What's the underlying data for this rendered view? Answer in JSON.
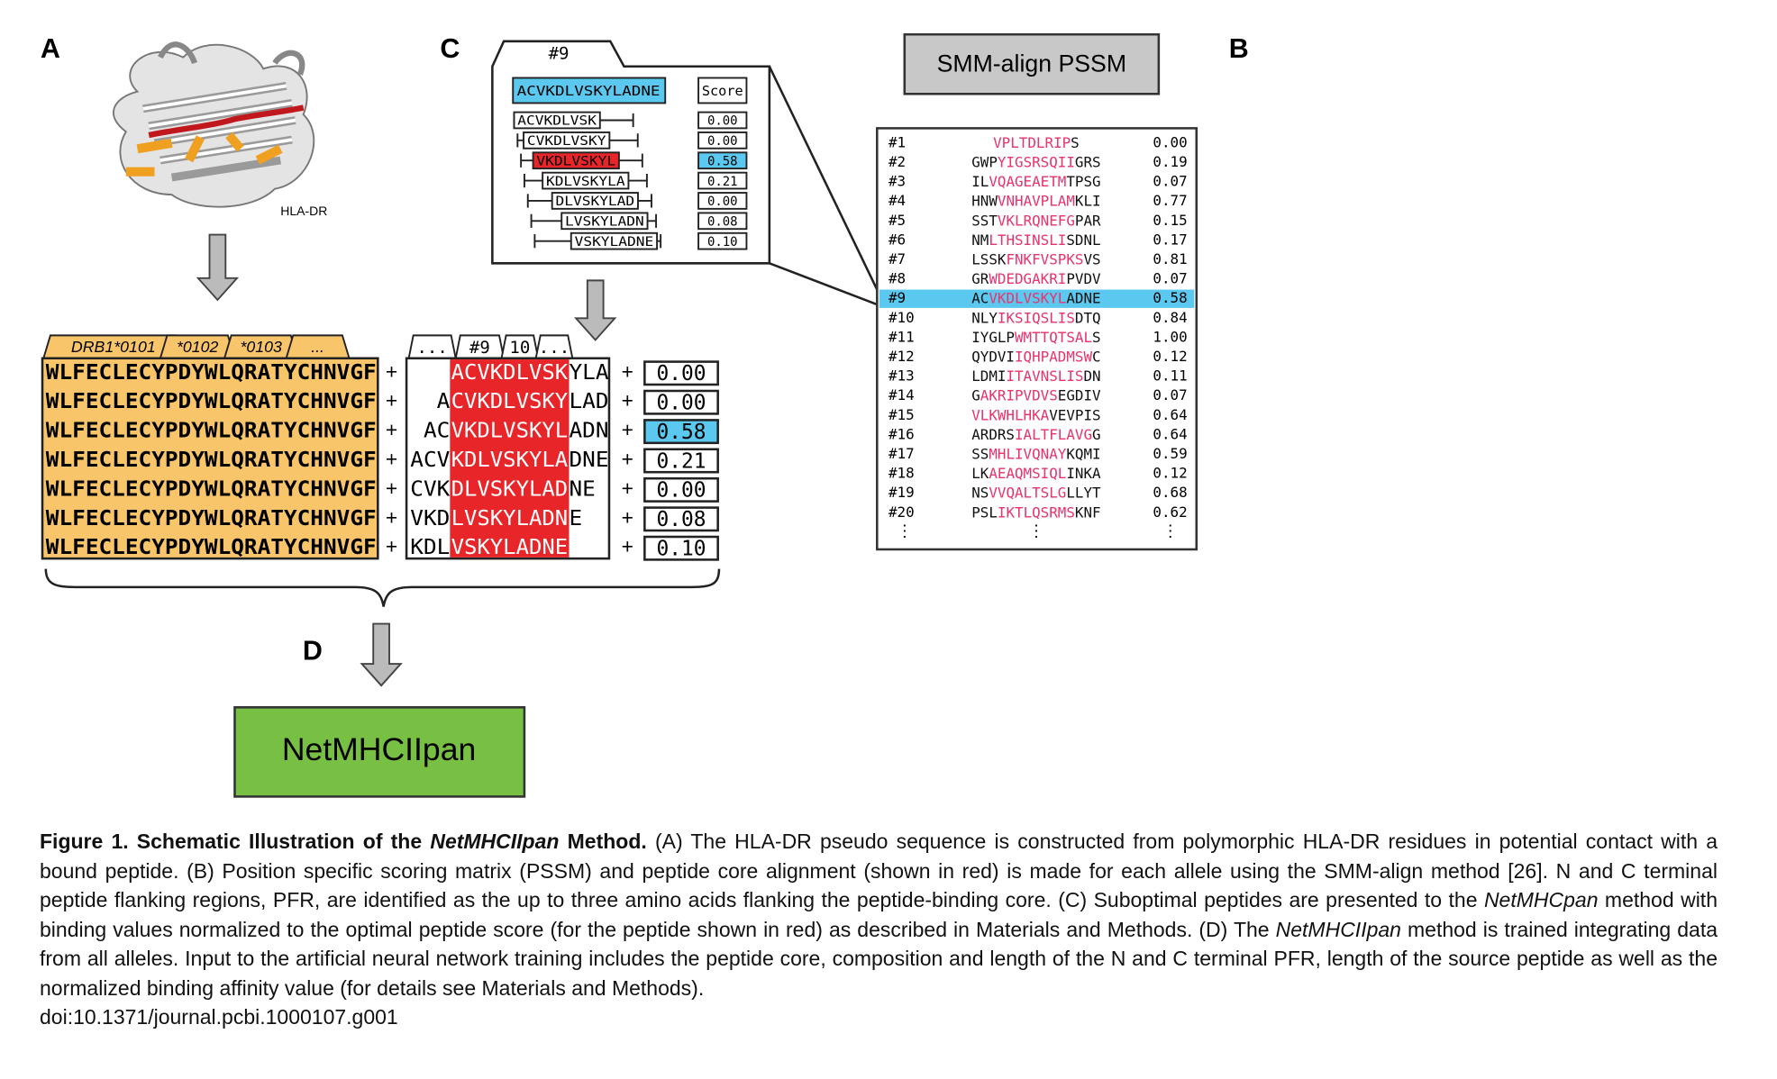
{
  "panels": {
    "a": "A",
    "b": "B",
    "c": "C",
    "d": "D"
  },
  "panel_a": {
    "structure_label": "HLA-DR"
  },
  "alleles": {
    "tabs": [
      "DRB1*0101",
      "*0102",
      "*0103",
      "..."
    ],
    "pseudo_sequences": [
      "WLFECLECYPDYWLQRATYCHNVGF",
      "WLFECLECYPDYWLQRATYCHNVGF",
      "WLFECLECYPDYWLQRATYCHNVGF",
      "WLFECLECYPDYWLQRATYCHNVGF",
      "WLFECLECYPDYWLQRATYCHNVGF",
      "WLFECLECYPDYWLQRATYCHNVGF",
      "WLFECLECYPDYWLQRATYCHNVGF"
    ]
  },
  "peptides": {
    "tabs": [
      "...",
      "#9",
      "10",
      "..."
    ],
    "plus": "+",
    "highlighted_row": 2,
    "rows": [
      {
        "core": "ACVKDLVSK",
        "right": "YLA"
      },
      {
        "left": "A",
        "core": "CVKDLVSKY",
        "right": "LAD"
      },
      {
        "left": "AC",
        "core": "VKDLVSKYL",
        "right": "ADN"
      },
      {
        "left": "ACV",
        "core": "KDLVSKYLA",
        "right": "DNE"
      },
      {
        "left": "CVK",
        "core": "DLVSKYLAD",
        "right": "NE"
      },
      {
        "left": "VKD",
        "core": "LVSKYLADN",
        "right": "E"
      },
      {
        "left": "KDL",
        "core": "VSKYLADNE"
      }
    ],
    "scores": [
      "0.00",
      "0.00",
      "0.58",
      "0.21",
      "0.00",
      "0.08",
      "0.10"
    ]
  },
  "panel_c": {
    "tab": "#9",
    "peptide": "ACVKDLVSKYLADNE",
    "score_header": "Score"
  },
  "pssm": {
    "title": "SMM-align PSSM",
    "more": "⋮",
    "highlighted_row": 8,
    "rows": [
      {
        "id": "#1",
        "core": "VPLTDLRIP",
        "post": "S",
        "score": "0.00"
      },
      {
        "id": "#2",
        "pre": "GWP",
        "core": "YIGSRSQII",
        "post": "GRS",
        "score": "0.19"
      },
      {
        "id": "#3",
        "pre": "IL",
        "core": "VQAGEAETM",
        "post": "TPSG",
        "score": "0.07"
      },
      {
        "id": "#4",
        "pre": "HNW",
        "core": "VNHAVPLAM",
        "post": "KLI",
        "score": "0.77"
      },
      {
        "id": "#5",
        "pre": "SST",
        "core": "VKLRQNEFG",
        "post": "PAR",
        "score": "0.15"
      },
      {
        "id": "#6",
        "pre": "NM",
        "core": "LTHSINSLI",
        "post": "SDNL",
        "score": "0.17"
      },
      {
        "id": "#7",
        "pre": "LSSK",
        "core": "FNKFVSPKS",
        "post": "VS",
        "score": "0.81"
      },
      {
        "id": "#8",
        "pre": "GR",
        "core": "WDEDGAKRI",
        "post": "PVDV",
        "score": "0.07"
      },
      {
        "id": "#9",
        "pre": "AC",
        "core": "VKDLVSKYL",
        "post": "ADNE",
        "score": "0.58"
      },
      {
        "id": "#10",
        "pre": "NLY",
        "core": "IKSIQSLIS",
        "post": "DTQ",
        "score": "0.84"
      },
      {
        "id": "#11",
        "pre": "IYGLP",
        "core": "WMTTQTSAL",
        "post": "S",
        "score": "1.00"
      },
      {
        "id": "#12",
        "pre": "QYDVI",
        "core": "IQHPADMSW",
        "post": "C",
        "score": "0.12"
      },
      {
        "id": "#13",
        "pre": "LDMI",
        "core": "ITAVNSLIS",
        "post": "DN",
        "score": "0.11"
      },
      {
        "id": "#14",
        "pre": "G",
        "core": "AKRIPVDVS",
        "post": "EGDIV",
        "score": "0.07"
      },
      {
        "id": "#15",
        "core": "VLKWHLHKA",
        "post": "VEVPIS",
        "score": "0.64"
      },
      {
        "id": "#16",
        "pre": "ARDRS",
        "core": "IALTFLAVG",
        "post": "G",
        "score": "0.64"
      },
      {
        "id": "#17",
        "pre": "SS",
        "core": "MHLIVQNAY",
        "post": "KQMI",
        "score": "0.59"
      },
      {
        "id": "#18",
        "pre": "LK",
        "core": "AEAQMSIQL",
        "post": "INKA",
        "score": "0.12"
      },
      {
        "id": "#19",
        "pre": "NS",
        "core": "VVQALTSLG",
        "post": "LLYT",
        "score": "0.68"
      },
      {
        "id": "#20",
        "pre": "PSL",
        "core": "IKTLQSRMS",
        "post": "KNF",
        "score": "0.62"
      }
    ]
  },
  "method": "NetMHCIIpan",
  "caption": {
    "title": [
      "Figure 1. Schematic Illustration of the ",
      "NetMHCIIpan",
      " Method."
    ],
    "body": [
      " (A) The HLA-DR pseudo sequence is constructed from polymorphic HLA-DR residues in potential contact with a bound peptide. (B) Position specific scoring matrix (PSSM) and peptide core alignment (shown in red) is made for each allele using the SMM-align method [26]. N and C terminal peptide flanking regions, PFR, are identified as the up to three amino acids flanking the peptide-binding core. (C) Suboptimal peptides are presented to the ",
      "NetMHCpan",
      " method with binding values normalized to the optimal peptide score (for the peptide shown in red) as described in Materials and Methods. (D) The ",
      "NetMHCIIpan",
      " method is trained integrating data from all alleles. Input to the artificial neural network training includes the peptide core, composition and length of the N and C terminal PFR, length of the source peptide as well as the normalized binding affinity value (for details see Materials and Methods)."
    ],
    "doi": "doi:10.1371/journal.pcbi.1000107.g001"
  }
}
